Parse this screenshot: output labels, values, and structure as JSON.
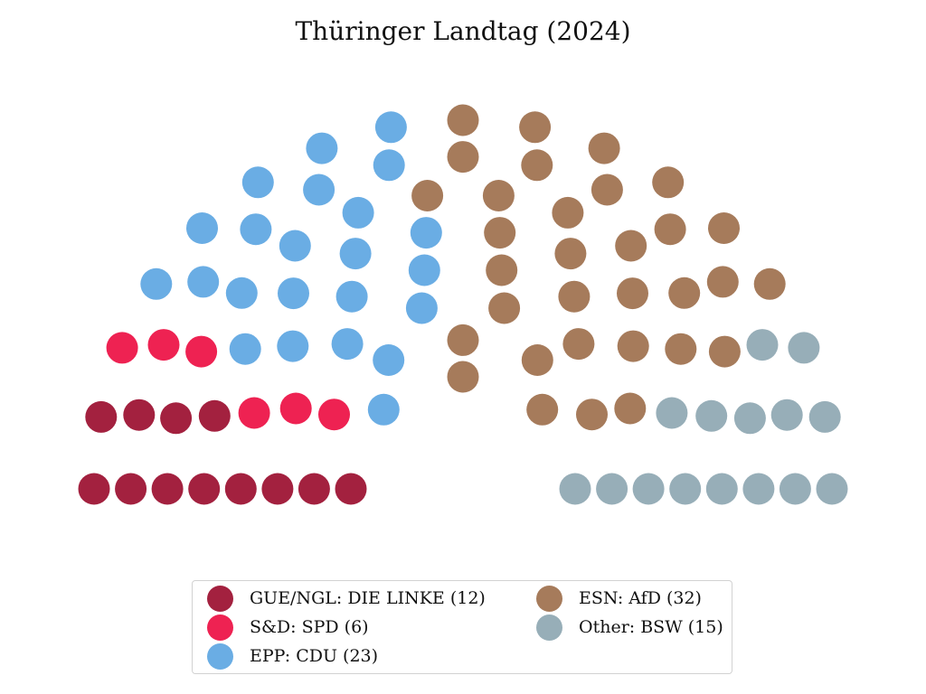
{
  "chart_data": {
    "type": "parliament",
    "title": "Thüringer Landtag (2024)",
    "total_seats": 88,
    "series": [
      {
        "name": "GUE/NGL: DIE LINKE (12)",
        "seats": 12,
        "color": "#a3213f"
      },
      {
        "name": "S&D: SPD (6)",
        "seats": 6,
        "color": "#ee2252"
      },
      {
        "name": "EPP: CDU (23)",
        "seats": 23,
        "color": "#6aade4"
      },
      {
        "name": "ESN: AfD (32)",
        "seats": 32,
        "color": "#a67b5b"
      },
      {
        "name": "Other: BSW (15)",
        "seats": 15,
        "color": "#97aeb8"
      }
    ],
    "legend_position": "bottom"
  }
}
